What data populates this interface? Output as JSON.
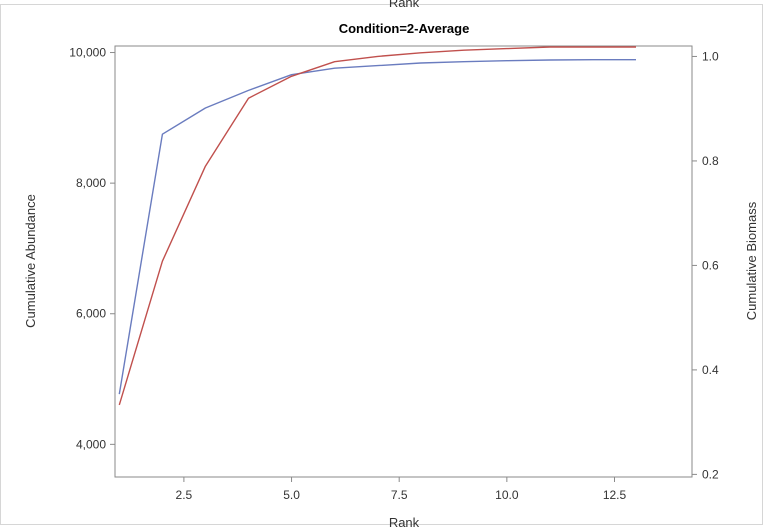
{
  "chart_data": {
    "type": "line",
    "title": "Condition=2-Average",
    "top_partial_label": "Rank",
    "xlabel": "Rank",
    "ylabel_left": "Cumulative Abundance",
    "ylabel_right": "Cumulative Biomass",
    "xlim": [
      0.9,
      14.3
    ],
    "ylim_left": [
      3500,
      10100
    ],
    "ylim_right": [
      0.195,
      1.02
    ],
    "x_ticks": [
      2.5,
      5.0,
      7.5,
      10.0,
      12.5
    ],
    "x_tick_labels": [
      "2.5",
      "5.0",
      "7.5",
      "10.0",
      "12.5"
    ],
    "y_left_ticks": [
      4000,
      6000,
      8000,
      10000
    ],
    "y_left_tick_labels": [
      "4,000",
      "6,000",
      "8,000",
      "10,000"
    ],
    "y_right_ticks": [
      0.2,
      0.4,
      0.6,
      0.8,
      1.0
    ],
    "y_right_tick_labels": [
      "0.2",
      "0.4",
      "0.6",
      "0.8",
      "1.0"
    ],
    "grid": false,
    "series": [
      {
        "axis": "left",
        "color": "#6a7cbf",
        "x": [
          1,
          2,
          3,
          4,
          5,
          6,
          7,
          8,
          9,
          10,
          11,
          12,
          13
        ],
        "y": [
          4770,
          8750,
          9150,
          9420,
          9660,
          9760,
          9800,
          9840,
          9860,
          9875,
          9885,
          9890,
          9890
        ]
      },
      {
        "axis": "right",
        "color": "#c0504d",
        "x": [
          1,
          2,
          3,
          4,
          5,
          6,
          7,
          8,
          9,
          10,
          11,
          12,
          13
        ],
        "y": [
          0.333,
          0.608,
          0.79,
          0.92,
          0.962,
          0.99,
          1.0,
          1.007,
          1.012,
          1.015,
          1.018,
          1.018,
          1.018
        ]
      }
    ]
  }
}
